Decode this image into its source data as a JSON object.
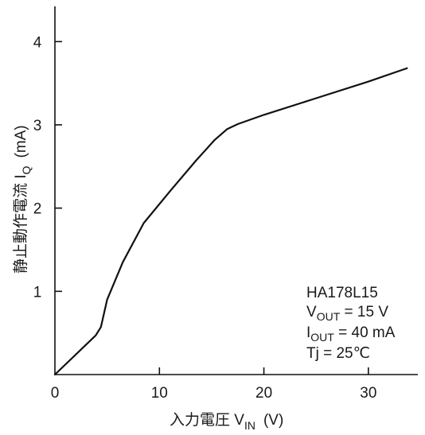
{
  "chart_data": {
    "type": "line",
    "title": "",
    "xlabel": {
      "main": "入力電圧 V",
      "sub": "IN",
      "unit": "(V)"
    },
    "ylabel": {
      "main": "静止動作電流 I",
      "sub": "Q",
      "unit": "(mA)"
    },
    "xlim": [
      0,
      35
    ],
    "ylim": [
      0,
      4.5
    ],
    "xticks": [
      0,
      10,
      20,
      30
    ],
    "yticks": [
      1,
      2,
      3,
      4
    ],
    "grid": false,
    "series": [
      {
        "x": [
          0,
          3.9,
          4.4,
          5.0,
          6.5,
          8.5,
          11.0,
          13.5,
          15.3,
          16.5,
          17.5,
          20.0,
          25.0,
          30.0,
          33.7
        ],
        "y": [
          0,
          0.47,
          0.57,
          0.9,
          1.35,
          1.82,
          2.2,
          2.57,
          2.82,
          2.95,
          3.01,
          3.12,
          3.32,
          3.52,
          3.68
        ],
        "color": "#111111"
      }
    ],
    "annotations": {
      "model": "HA178L15",
      "vout": {
        "label": "V",
        "sub": "OUT",
        "value": " = 15 V"
      },
      "iout": {
        "label": "I",
        "sub": "OUT",
        "value": " = 40 mA"
      },
      "tj": "Tj = 25℃"
    }
  }
}
